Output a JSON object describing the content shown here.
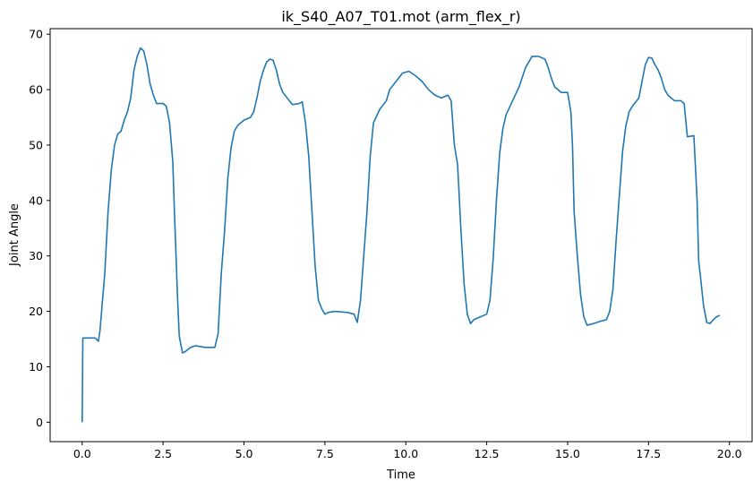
{
  "chart_data": {
    "type": "line",
    "title": "ik_S40_A07_T01.mot (arm_flex_r)",
    "xlabel": "Time",
    "ylabel": "Joint Angle",
    "xlim": [
      -0.99,
      20.7
    ],
    "ylim": [
      -3.5,
      71
    ],
    "xticks": [
      0.0,
      2.5,
      5.0,
      7.5,
      10.0,
      12.5,
      15.0,
      17.5,
      20.0
    ],
    "xtick_labels": [
      "0.0",
      "2.5",
      "5.0",
      "7.5",
      "10.0",
      "12.5",
      "15.0",
      "17.5",
      "20.0"
    ],
    "yticks": [
      0,
      10,
      20,
      30,
      40,
      50,
      60,
      70
    ],
    "ytick_labels": [
      "0",
      "10",
      "20",
      "30",
      "40",
      "50",
      "60",
      "70"
    ],
    "grid": false,
    "legend": "none",
    "series": [
      {
        "name": "arm_flex_r",
        "color": "#1f77b4",
        "points": [
          [
            0.0,
            0.0
          ],
          [
            0.02,
            15.2
          ],
          [
            0.2,
            15.2
          ],
          [
            0.4,
            15.2
          ],
          [
            0.5,
            14.6
          ],
          [
            0.55,
            16.5
          ],
          [
            0.6,
            20.0
          ],
          [
            0.7,
            27.0
          ],
          [
            0.8,
            38.0
          ],
          [
            0.9,
            45.5
          ],
          [
            1.0,
            50.0
          ],
          [
            1.1,
            52.0
          ],
          [
            1.2,
            52.5
          ],
          [
            1.3,
            54.5
          ],
          [
            1.4,
            56.0
          ],
          [
            1.5,
            58.5
          ],
          [
            1.6,
            63.5
          ],
          [
            1.7,
            66.0
          ],
          [
            1.8,
            67.5
          ],
          [
            1.9,
            67.0
          ],
          [
            2.0,
            64.5
          ],
          [
            2.1,
            61.0
          ],
          [
            2.2,
            59.0
          ],
          [
            2.3,
            57.5
          ],
          [
            2.5,
            57.5
          ],
          [
            2.6,
            57.0
          ],
          [
            2.7,
            54.0
          ],
          [
            2.8,
            47.0
          ],
          [
            2.85,
            38.0
          ],
          [
            2.9,
            30.0
          ],
          [
            2.95,
            22.0
          ],
          [
            3.0,
            15.5
          ],
          [
            3.1,
            12.5
          ],
          [
            3.2,
            12.8
          ],
          [
            3.35,
            13.5
          ],
          [
            3.5,
            13.8
          ],
          [
            3.8,
            13.5
          ],
          [
            4.1,
            13.5
          ],
          [
            4.2,
            16.0
          ],
          [
            4.3,
            27.0
          ],
          [
            4.4,
            34.5
          ],
          [
            4.5,
            44.0
          ],
          [
            4.6,
            49.5
          ],
          [
            4.7,
            52.5
          ],
          [
            4.8,
            53.5
          ],
          [
            5.0,
            54.5
          ],
          [
            5.2,
            55.0
          ],
          [
            5.3,
            56.0
          ],
          [
            5.4,
            58.5
          ],
          [
            5.5,
            61.5
          ],
          [
            5.6,
            63.5
          ],
          [
            5.7,
            65.0
          ],
          [
            5.8,
            65.5
          ],
          [
            5.9,
            65.3
          ],
          [
            6.0,
            63.5
          ],
          [
            6.1,
            61.0
          ],
          [
            6.2,
            59.5
          ],
          [
            6.4,
            58.0
          ],
          [
            6.5,
            57.3
          ],
          [
            6.7,
            57.5
          ],
          [
            6.8,
            57.8
          ],
          [
            6.9,
            54.0
          ],
          [
            7.0,
            48.0
          ],
          [
            7.1,
            38.0
          ],
          [
            7.2,
            28.0
          ],
          [
            7.3,
            22.0
          ],
          [
            7.4,
            20.5
          ],
          [
            7.5,
            19.5
          ],
          [
            7.6,
            19.8
          ],
          [
            7.8,
            20.0
          ],
          [
            8.2,
            19.8
          ],
          [
            8.4,
            19.5
          ],
          [
            8.5,
            18.0
          ],
          [
            8.6,
            22.0
          ],
          [
            8.7,
            30.0
          ],
          [
            8.8,
            38.0
          ],
          [
            8.9,
            48.0
          ],
          [
            9.0,
            54.0
          ],
          [
            9.2,
            56.5
          ],
          [
            9.4,
            58.0
          ],
          [
            9.5,
            60.0
          ],
          [
            9.7,
            61.5
          ],
          [
            9.9,
            63.0
          ],
          [
            10.1,
            63.3
          ],
          [
            10.3,
            62.5
          ],
          [
            10.5,
            61.5
          ],
          [
            10.7,
            60.0
          ],
          [
            10.9,
            59.0
          ],
          [
            11.1,
            58.5
          ],
          [
            11.3,
            59.0
          ],
          [
            11.4,
            58.0
          ],
          [
            11.5,
            50.0
          ],
          [
            11.6,
            46.5
          ],
          [
            11.7,
            35.0
          ],
          [
            11.8,
            25.0
          ],
          [
            11.9,
            19.5
          ],
          [
            12.0,
            17.8
          ],
          [
            12.1,
            18.5
          ],
          [
            12.3,
            19.0
          ],
          [
            12.5,
            19.5
          ],
          [
            12.6,
            22.0
          ],
          [
            12.7,
            29.5
          ],
          [
            12.8,
            40.0
          ],
          [
            12.9,
            48.5
          ],
          [
            13.0,
            53.0
          ],
          [
            13.1,
            55.5
          ],
          [
            13.3,
            58.0
          ],
          [
            13.5,
            60.5
          ],
          [
            13.7,
            64.0
          ],
          [
            13.9,
            66.0
          ],
          [
            14.1,
            66.0
          ],
          [
            14.3,
            65.5
          ],
          [
            14.4,
            64.0
          ],
          [
            14.5,
            62.0
          ],
          [
            14.6,
            60.5
          ],
          [
            14.8,
            59.5
          ],
          [
            15.0,
            59.5
          ],
          [
            15.1,
            56.0
          ],
          [
            15.15,
            50.0
          ],
          [
            15.2,
            38.0
          ],
          [
            15.3,
            30.0
          ],
          [
            15.4,
            23.0
          ],
          [
            15.5,
            19.0
          ],
          [
            15.6,
            17.5
          ],
          [
            15.8,
            17.8
          ],
          [
            16.0,
            18.2
          ],
          [
            16.2,
            18.5
          ],
          [
            16.3,
            20.0
          ],
          [
            16.4,
            24.0
          ],
          [
            16.5,
            33.0
          ],
          [
            16.6,
            41.0
          ],
          [
            16.7,
            49.0
          ],
          [
            16.8,
            53.5
          ],
          [
            16.9,
            56.0
          ],
          [
            17.0,
            57.0
          ],
          [
            17.2,
            58.5
          ],
          [
            17.3,
            61.5
          ],
          [
            17.4,
            64.5
          ],
          [
            17.5,
            65.8
          ],
          [
            17.6,
            65.7
          ],
          [
            17.7,
            64.5
          ],
          [
            17.8,
            63.5
          ],
          [
            17.9,
            62.0
          ],
          [
            18.0,
            60.0
          ],
          [
            18.1,
            59.0
          ],
          [
            18.3,
            58.0
          ],
          [
            18.5,
            58.0
          ],
          [
            18.6,
            57.5
          ],
          [
            18.7,
            51.5
          ],
          [
            18.9,
            51.7
          ],
          [
            18.95,
            46.0
          ],
          [
            19.0,
            40.0
          ],
          [
            19.05,
            29.0
          ],
          [
            19.1,
            26.5
          ],
          [
            19.2,
            21.0
          ],
          [
            19.3,
            18.0
          ],
          [
            19.4,
            17.8
          ],
          [
            19.5,
            18.5
          ],
          [
            19.6,
            19.0
          ],
          [
            19.7,
            19.3
          ]
        ]
      }
    ]
  }
}
